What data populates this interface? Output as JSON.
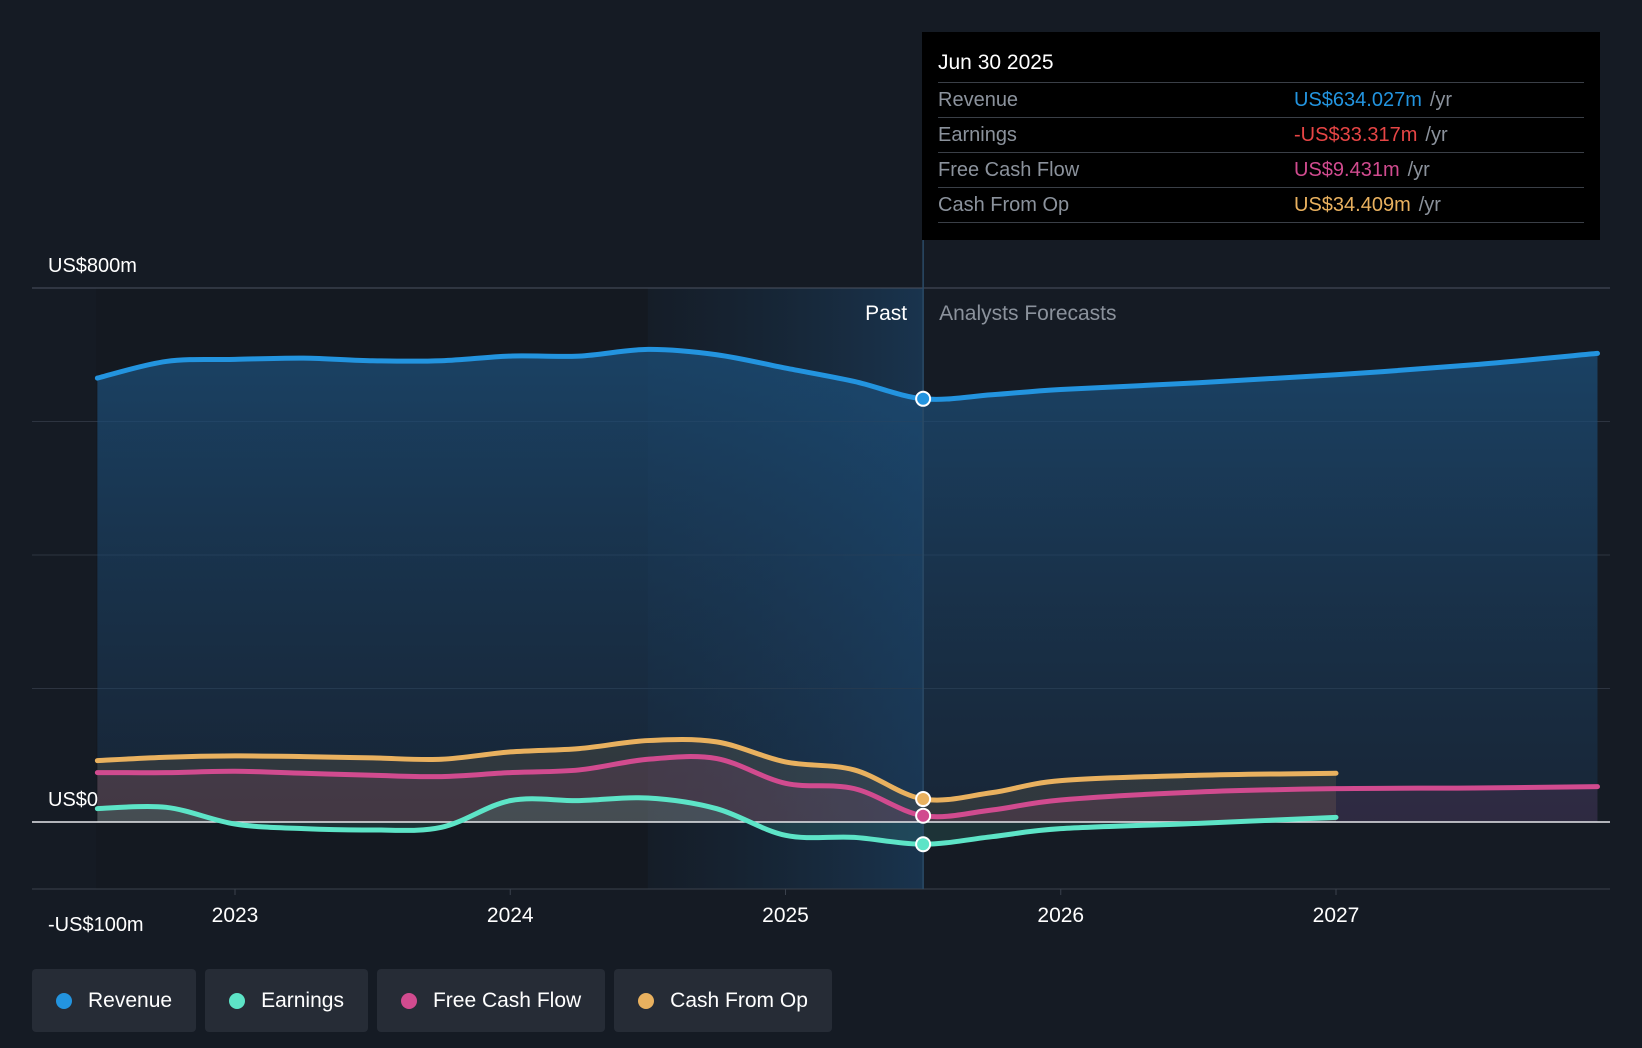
{
  "chart_data": {
    "type": "line",
    "y_axis_labels": [
      "US$800m",
      "US$0",
      "-US$100m"
    ],
    "ylim": [
      -100,
      800
    ],
    "x_ticks": [
      "2023",
      "2024",
      "2025",
      "2026",
      "2027"
    ],
    "past_label": "Past",
    "forecast_label": "Analysts Forecasts",
    "divider_date": 2025.5,
    "highlight_start": 2024.5,
    "series": [
      {
        "name": "Revenue",
        "color": "#2394df",
        "points": [
          [
            2022.5,
            665
          ],
          [
            2022.75,
            690
          ],
          [
            2023.0,
            693
          ],
          [
            2023.25,
            695
          ],
          [
            2023.5,
            691
          ],
          [
            2023.75,
            691
          ],
          [
            2024.0,
            698
          ],
          [
            2024.25,
            698
          ],
          [
            2024.5,
            708
          ],
          [
            2024.75,
            700
          ],
          [
            2025.0,
            680
          ],
          [
            2025.25,
            660
          ],
          [
            2025.5,
            634.027
          ],
          [
            2025.75,
            640
          ],
          [
            2026.0,
            648
          ],
          [
            2026.5,
            658
          ],
          [
            2027.0,
            670
          ],
          [
            2027.5,
            685
          ],
          [
            2027.95,
            702
          ]
        ]
      },
      {
        "name": "Earnings",
        "color": "#5de4c7",
        "points": [
          [
            2022.5,
            20
          ],
          [
            2022.75,
            22
          ],
          [
            2023.0,
            -3
          ],
          [
            2023.25,
            -10
          ],
          [
            2023.5,
            -12
          ],
          [
            2023.75,
            -8
          ],
          [
            2024.0,
            32
          ],
          [
            2024.25,
            32
          ],
          [
            2024.5,
            36
          ],
          [
            2024.75,
            20
          ],
          [
            2025.0,
            -20
          ],
          [
            2025.25,
            -23
          ],
          [
            2025.5,
            -33.317
          ],
          [
            2025.75,
            -22
          ],
          [
            2026.0,
            -10
          ],
          [
            2026.5,
            -2
          ],
          [
            2027.0,
            7
          ]
        ]
      },
      {
        "name": "Free Cash Flow",
        "color": "#d14b8f",
        "points": [
          [
            2022.5,
            74
          ],
          [
            2022.75,
            74
          ],
          [
            2023.0,
            76
          ],
          [
            2023.25,
            73
          ],
          [
            2023.5,
            70
          ],
          [
            2023.75,
            68
          ],
          [
            2024.0,
            74
          ],
          [
            2024.25,
            78
          ],
          [
            2024.5,
            94
          ],
          [
            2024.75,
            95
          ],
          [
            2025.0,
            58
          ],
          [
            2025.25,
            50
          ],
          [
            2025.5,
            9.431
          ],
          [
            2025.75,
            18
          ],
          [
            2026.0,
            33
          ],
          [
            2026.5,
            45
          ],
          [
            2027.0,
            50
          ],
          [
            2027.5,
            51
          ],
          [
            2027.95,
            53
          ]
        ]
      },
      {
        "name": "Cash From Op",
        "color": "#e9b15f",
        "points": [
          [
            2022.5,
            92
          ],
          [
            2022.75,
            97
          ],
          [
            2023.0,
            99
          ],
          [
            2023.25,
            98
          ],
          [
            2023.5,
            96
          ],
          [
            2023.75,
            94
          ],
          [
            2024.0,
            105
          ],
          [
            2024.25,
            110
          ],
          [
            2024.5,
            122
          ],
          [
            2024.75,
            120
          ],
          [
            2025.0,
            90
          ],
          [
            2025.25,
            78
          ],
          [
            2025.5,
            34.409
          ],
          [
            2025.75,
            44
          ],
          [
            2026.0,
            62
          ],
          [
            2026.5,
            70
          ],
          [
            2027.0,
            73
          ]
        ]
      }
    ]
  },
  "tooltip": {
    "date": "Jun 30 2025",
    "rows": [
      {
        "label": "Revenue",
        "value": "US$634.027m",
        "unit": "/yr",
        "color": "#2394df"
      },
      {
        "label": "Earnings",
        "value": "-US$33.317m",
        "unit": "/yr",
        "color": "#e64545"
      },
      {
        "label": "Free Cash Flow",
        "value": "US$9.431m",
        "unit": "/yr",
        "color": "#d14b8f"
      },
      {
        "label": "Cash From Op",
        "value": "US$34.409m",
        "unit": "/yr",
        "color": "#e9b15f"
      }
    ]
  },
  "legend": [
    {
      "label": "Revenue",
      "color": "#2394df"
    },
    {
      "label": "Earnings",
      "color": "#5de4c7"
    },
    {
      "label": "Free Cash Flow",
      "color": "#d14b8f"
    },
    {
      "label": "Cash From Op",
      "color": "#e9b15f"
    }
  ]
}
